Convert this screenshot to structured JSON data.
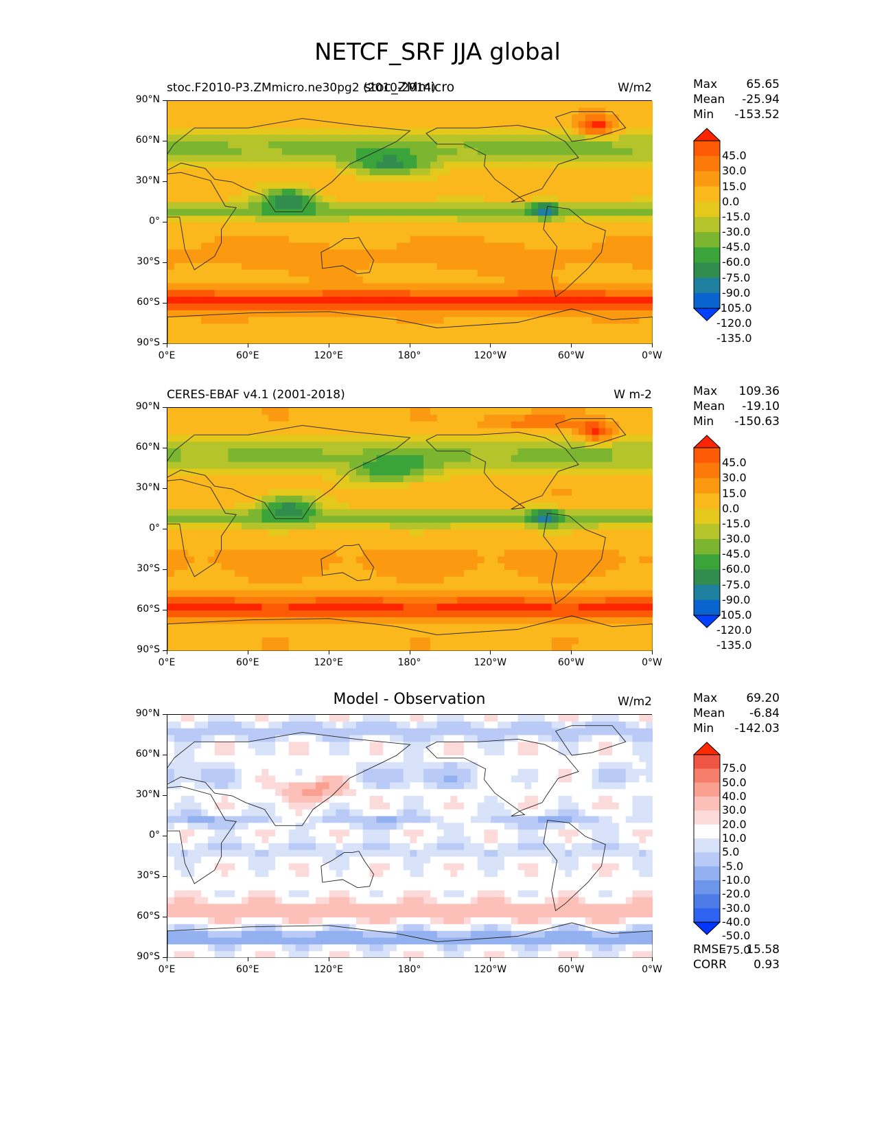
{
  "title": "NETCF_SRF JJA global",
  "colors": {
    "full_field": [
      "#0040ff",
      "#0a64d0",
      "#1e7f9e",
      "#318c4e",
      "#3aa43a",
      "#7cb630",
      "#b5c42a",
      "#e4c81c",
      "#fbb81c",
      "#fb9a10",
      "#fc7a0a",
      "#fd5a06",
      "#ff2400"
    ],
    "diff_field": [
      "#0034ff",
      "#2d63f0",
      "#4d7ce6",
      "#6d95ea",
      "#93b0f0",
      "#b8caf5",
      "#d8e3fa",
      "#ffffff",
      "#fddada",
      "#fcc0b8",
      "#f9a090",
      "#f57e6a",
      "#f05544",
      "#ff2a00"
    ]
  },
  "panels": [
    {
      "left_label": "stoc.F2010-P3.ZMmicro.ne30pg2 (2010-2014)",
      "center_label": "stoc_ZMmicro",
      "units": "W/m2",
      "stats": [
        {
          "label": "Max",
          "value": "65.65"
        },
        {
          "label": "Mean",
          "value": "-25.94"
        },
        {
          "label": "Min",
          "value": "-153.52"
        }
      ],
      "levels": [
        "45.0",
        "30.0",
        "15.0",
        "0.0",
        "-15.0",
        "-30.0",
        "-45.0",
        "-60.0",
        "-75.0",
        "-90.0",
        "-105.0",
        "-120.0",
        "-135.0"
      ]
    },
    {
      "left_label": "CERES-EBAF v4.1 (2001-2018)",
      "center_label": "",
      "units": "W m-2",
      "stats": [
        {
          "label": "Max",
          "value": "109.36"
        },
        {
          "label": "Mean",
          "value": "-19.10"
        },
        {
          "label": "Min",
          "value": "-150.63"
        }
      ],
      "levels": [
        "45.0",
        "30.0",
        "15.0",
        "0.0",
        "-15.0",
        "-30.0",
        "-45.0",
        "-60.0",
        "-75.0",
        "-90.0",
        "-105.0",
        "-120.0",
        "-135.0"
      ]
    },
    {
      "left_label": "",
      "center_label": "Model - Observation",
      "units": "W/m2",
      "stats": [
        {
          "label": "Max",
          "value": "69.20"
        },
        {
          "label": "Mean",
          "value": "-6.84"
        },
        {
          "label": "Min",
          "value": "-142.03"
        }
      ],
      "levels": [
        "75.0",
        "50.0",
        "40.0",
        "30.0",
        "20.0",
        "10.0",
        "5.0",
        "-5.0",
        "-10.0",
        "-20.0",
        "-30.0",
        "-40.0",
        "-50.0",
        "-75.0"
      ],
      "extra_stats": [
        {
          "label": "RMSE",
          "value": "15.58"
        },
        {
          "label": "CORR",
          "value": "0.93"
        }
      ]
    }
  ],
  "axes": {
    "y_ticks": [
      "90°N",
      "60°N",
      "30°N",
      "0°",
      "30°S",
      "60°S",
      "90°S"
    ],
    "x_ticks": [
      "0°E",
      "60°E",
      "120°E",
      "180°",
      "120°W",
      "60°W",
      "0°W"
    ]
  },
  "chart_data": {
    "type": "heatmap",
    "title": "NETCF_SRF JJA global",
    "xlim": [
      0,
      360
    ],
    "ylim": [
      -90,
      90
    ],
    "x_ticks": [
      "0°E",
      "60°E",
      "120°E",
      "180°",
      "120°W",
      "60°W",
      "0°W"
    ],
    "y_ticks": [
      "90°N",
      "60°N",
      "30°N",
      "0°",
      "30°S",
      "60°S",
      "90°S"
    ],
    "series": [
      {
        "name": "stoc_ZMmicro",
        "max": 65.65,
        "mean": -25.94,
        "min": -153.52
      },
      {
        "name": "CERES-EBAF v4.1 (2001-2018)",
        "max": 109.36,
        "mean": -19.1,
        "min": -150.63
      },
      {
        "name": "Model - Observation",
        "max": 69.2,
        "mean": -6.84,
        "min": -142.03,
        "rmse": 15.58,
        "corr": 0.93
      }
    ]
  }
}
